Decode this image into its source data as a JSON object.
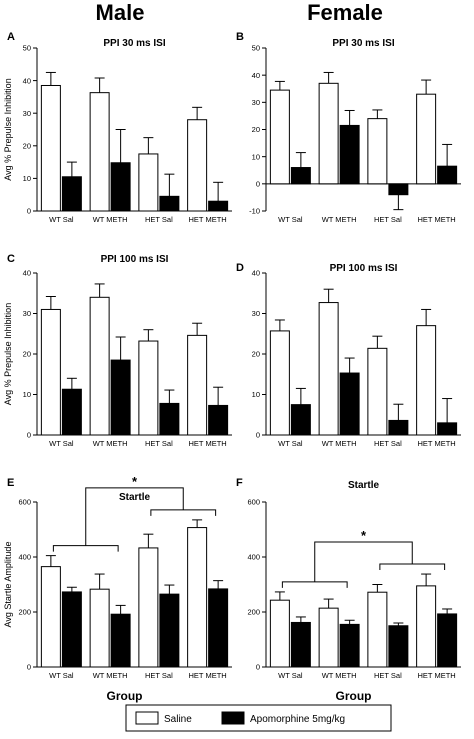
{
  "column_headers": {
    "left": "Male",
    "right": "Female"
  },
  "legend": {
    "items": [
      {
        "label": "Saline",
        "color": "#ffffff"
      },
      {
        "label": "Apomorphine 5mg/kg",
        "color": "#000000"
      }
    ]
  },
  "colors": {
    "saline": "#ffffff",
    "apomorphine": "#000000",
    "stroke": "#000000"
  },
  "chart_data": [
    {
      "panel": "A",
      "type": "bar",
      "title": "PPI 30 ms ISI",
      "ylabel": "Avg %  Prepulse Inhibition",
      "xlabel": "",
      "ylim": [
        0,
        50
      ],
      "yticks": [
        0,
        10,
        20,
        30,
        40,
        50
      ],
      "categories": [
        "WT Sal",
        "WT METH",
        "HET Sal",
        "HET METH"
      ],
      "series": [
        {
          "name": "Saline",
          "values": [
            38.5,
            36.3,
            17.5,
            28.0
          ],
          "errors": [
            4.0,
            4.5,
            5.0,
            3.8
          ]
        },
        {
          "name": "Apomorphine 5mg/kg",
          "values": [
            10.5,
            14.8,
            4.5,
            3.0
          ],
          "errors": [
            4.5,
            10.2,
            6.8,
            5.8
          ]
        }
      ]
    },
    {
      "panel": "B",
      "type": "bar",
      "title": "PPI 30 ms ISI",
      "ylabel": "",
      "xlabel": "",
      "ylim": [
        -10,
        50
      ],
      "yticks": [
        -10,
        0,
        10,
        20,
        30,
        40,
        50
      ],
      "categories": [
        "WT Sal",
        "WT METH",
        "HET Sal",
        "HET METH"
      ],
      "series": [
        {
          "name": "Saline",
          "values": [
            34.5,
            37.0,
            24.0,
            33.0
          ],
          "errors": [
            3.2,
            4.0,
            3.2,
            5.2
          ]
        },
        {
          "name": "Apomorphine 5mg/kg",
          "values": [
            6.0,
            21.5,
            -4.0,
            6.5
          ],
          "errors": [
            5.5,
            5.5,
            5.5,
            8.0
          ]
        }
      ]
    },
    {
      "panel": "C",
      "type": "bar",
      "title": "PPI 100 ms ISI",
      "ylabel": "Avg % Prepulse Inhibition",
      "xlabel": "",
      "ylim": [
        0,
        40
      ],
      "yticks": [
        0,
        10,
        20,
        30,
        40
      ],
      "categories": [
        "WT Sal",
        "WT METH",
        "HET Sal",
        "HET METH"
      ],
      "series": [
        {
          "name": "Saline",
          "values": [
            31.0,
            34.0,
            23.2,
            24.6
          ],
          "errors": [
            3.2,
            3.3,
            2.8,
            3.0
          ]
        },
        {
          "name": "Apomorphine 5mg/kg",
          "values": [
            11.3,
            18.5,
            7.8,
            7.3
          ],
          "errors": [
            2.7,
            5.7,
            3.3,
            4.5
          ]
        }
      ]
    },
    {
      "panel": "D",
      "type": "bar",
      "title": "PPI 100 ms ISI",
      "ylabel": "",
      "xlabel": "",
      "ylim": [
        0,
        40
      ],
      "yticks": [
        0,
        10,
        20,
        30,
        40
      ],
      "categories": [
        "WT Sal",
        "WT METH",
        "HET Sal",
        "HET METH"
      ],
      "series": [
        {
          "name": "Saline",
          "values": [
            25.7,
            32.7,
            21.4,
            27.0
          ],
          "errors": [
            2.7,
            3.3,
            3.0,
            4.0
          ]
        },
        {
          "name": "Apomorphine 5mg/kg",
          "values": [
            7.5,
            15.3,
            3.6,
            3.0
          ],
          "errors": [
            4.0,
            3.7,
            4.0,
            6.0
          ]
        }
      ]
    },
    {
      "panel": "E",
      "type": "bar",
      "title": "Startle",
      "ylabel": "Avg Startle Amplitude",
      "xlabel": "Group",
      "ylim": [
        0,
        600
      ],
      "yticks": [
        0,
        200,
        400,
        600
      ],
      "categories": [
        "WT Sal",
        "WT METH",
        "HET Sal",
        "HET METH"
      ],
      "series": [
        {
          "name": "Saline",
          "values": [
            365,
            283,
            433,
            507
          ],
          "errors": [
            40,
            55,
            50,
            28
          ]
        },
        {
          "name": "Apomorphine 5mg/kg",
          "values": [
            273,
            192,
            265,
            284
          ],
          "errors": [
            17,
            32,
            33,
            30
          ]
        }
      ],
      "significance": {
        "label": "*",
        "groups": [
          [
            0,
            1
          ],
          [
            2,
            3
          ]
        ]
      }
    },
    {
      "panel": "F",
      "type": "bar",
      "title": "Startle",
      "ylabel": "",
      "xlabel": "Group",
      "ylim": [
        0,
        600
      ],
      "yticks": [
        0,
        200,
        400,
        600
      ],
      "categories": [
        "WT Sal",
        "WT METH",
        "HET Sal",
        "HET METH"
      ],
      "series": [
        {
          "name": "Saline",
          "values": [
            243,
            214,
            272,
            295
          ],
          "errors": [
            30,
            33,
            28,
            43
          ]
        },
        {
          "name": "Apomorphine 5mg/kg",
          "values": [
            162,
            155,
            150,
            193
          ],
          "errors": [
            20,
            15,
            10,
            18
          ]
        }
      ],
      "significance": {
        "label": "*",
        "groups": [
          [
            0,
            1
          ],
          [
            2,
            3
          ]
        ]
      }
    }
  ]
}
